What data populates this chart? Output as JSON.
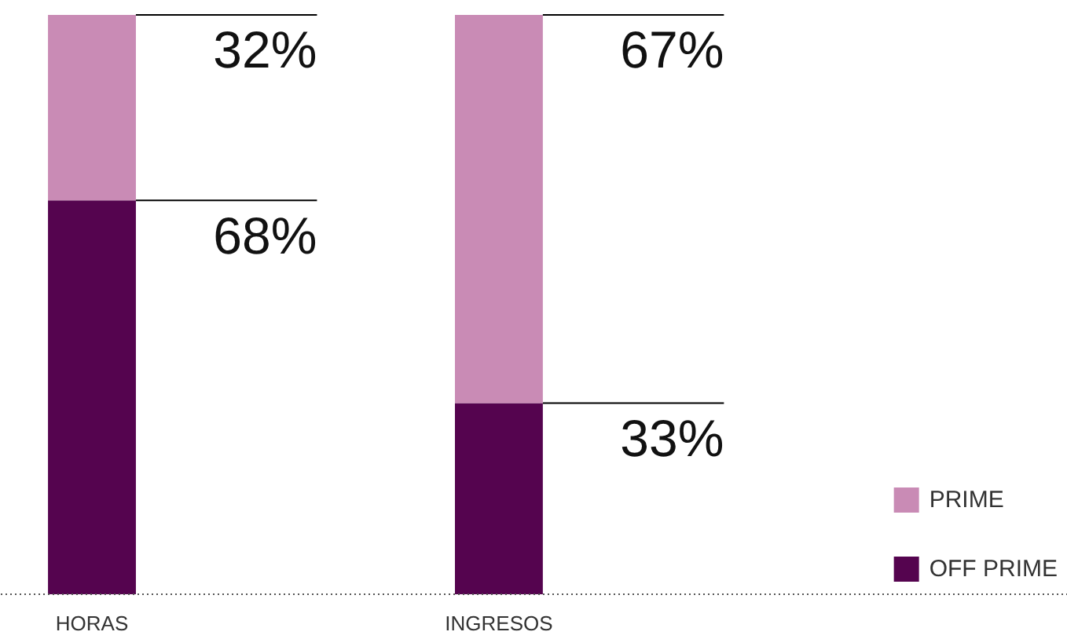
{
  "chart_data": {
    "type": "bar",
    "stacked": true,
    "categories": [
      "HORAS",
      "INGRESOS"
    ],
    "series": [
      {
        "name": "OFF PRIME",
        "color": "#55044f",
        "values": [
          68,
          33
        ],
        "value_labels": [
          "68%",
          "33%"
        ]
      },
      {
        "name": "PRIME",
        "color": "#c98bb5",
        "values": [
          32,
          67
        ],
        "value_labels": [
          "32%",
          "67%"
        ]
      }
    ],
    "legend": "bottom right",
    "grid": false
  }
}
